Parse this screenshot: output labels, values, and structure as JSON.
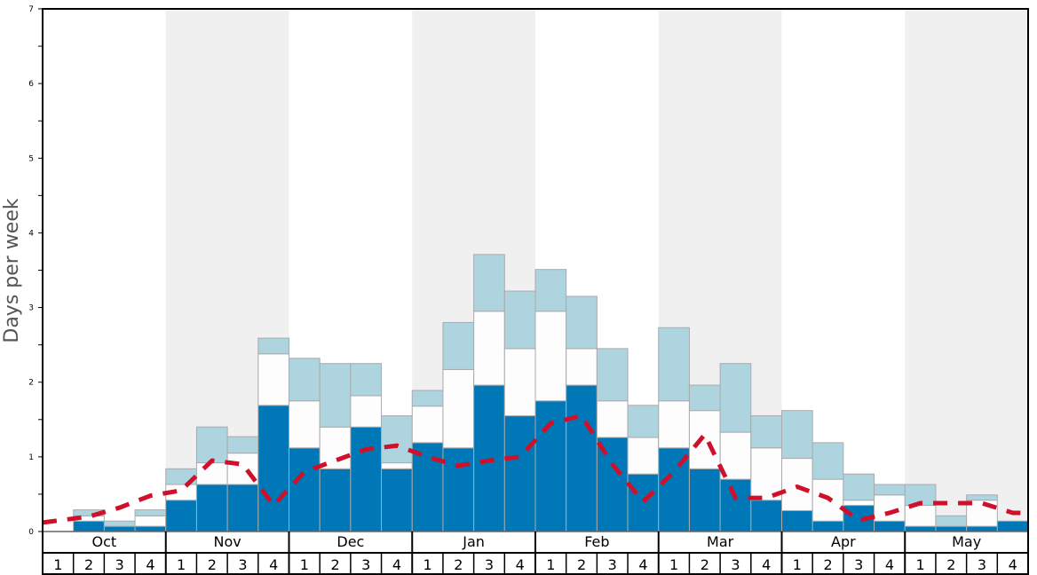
{
  "chart_data": {
    "type": "bar",
    "stacked": true,
    "title": "",
    "ylabel": "Days per week",
    "xlabel": "",
    "ylim": [
      0,
      7
    ],
    "yticks": [
      "0",
      "1",
      "2",
      "3",
      "4",
      "5",
      "6",
      "7"
    ],
    "months": [
      "Oct",
      "Nov",
      "Dec",
      "Jan",
      "Feb",
      "Mar",
      "Apr",
      "May"
    ],
    "weeks": [
      "1",
      "2",
      "3",
      "4"
    ],
    "shaded_months": [
      "Nov",
      "Jan",
      "Mar",
      "May"
    ],
    "colors": {
      "dark": "#0077b6",
      "white": "#fdfdfd",
      "light": "#aed4e0",
      "line": "#d0102a",
      "shade": "#f0f0f0"
    },
    "series": [
      {
        "name": "dark",
        "values": [
          0,
          0.14,
          0.07,
          0.07,
          0.42,
          0.63,
          0.63,
          1.69,
          1.12,
          0.84,
          1.4,
          0.84,
          1.19,
          1.12,
          1.96,
          1.55,
          1.75,
          1.96,
          1.26,
          0.77,
          1.12,
          0.84,
          0.7,
          0.42,
          0.28,
          0.14,
          0.35,
          0.14,
          0.07,
          0.07,
          0.07,
          0.14
        ]
      },
      {
        "name": "white",
        "values": [
          0,
          0.07,
          0,
          0.14,
          0.21,
          0.29,
          0.42,
          0.69,
          0.63,
          0.56,
          0.42,
          0.08,
          0.49,
          1.05,
          0.99,
          0.9,
          1.2,
          0.49,
          0.49,
          0.49,
          0.63,
          0.78,
          0.63,
          0.7,
          0.7,
          0.56,
          0.07,
          0.35,
          0.28,
          0,
          0.35,
          0
        ]
      },
      {
        "name": "light",
        "values": [
          0,
          0.08,
          0.07,
          0.08,
          0.21,
          0.48,
          0.22,
          0.21,
          0.57,
          0.85,
          0.43,
          0.63,
          0.21,
          0.63,
          0.76,
          0.77,
          0.56,
          0.7,
          0.7,
          0.43,
          0.98,
          0.34,
          0.92,
          0.43,
          0.64,
          0.49,
          0.35,
          0.14,
          0.28,
          0.14,
          0.07,
          0
        ]
      },
      {
        "name": "average",
        "type": "line",
        "values": [
          0.12,
          0.2,
          0.32,
          0.48,
          0.55,
          0.95,
          0.9,
          0.35,
          0.8,
          0.95,
          1.1,
          1.15,
          1.0,
          0.88,
          0.95,
          1.0,
          1.45,
          1.55,
          0.9,
          0.4,
          0.8,
          1.3,
          0.45,
          0.45,
          0.6,
          0.45,
          0.15,
          0.25,
          0.38,
          0.38,
          0.38,
          0.25
        ]
      }
    ]
  }
}
